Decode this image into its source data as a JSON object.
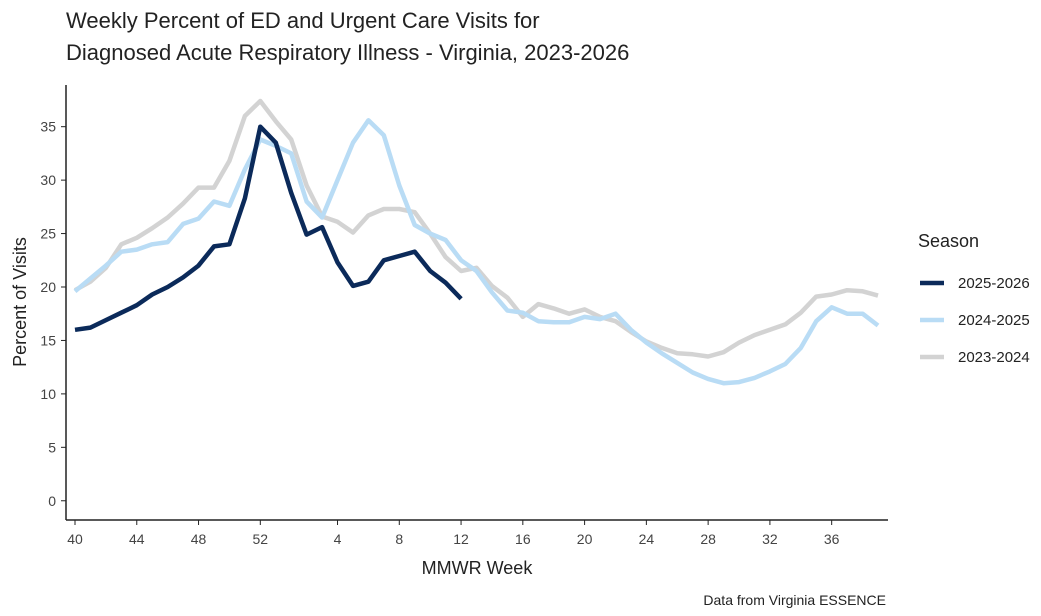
{
  "chart_data": {
    "type": "line",
    "title": [
      "Weekly Percent of ED and Urgent Care Visits for",
      "Diagnosed Acute Respiratory Illness - Virginia, 2023-2026"
    ],
    "x_label": "MMWR Week",
    "y_label": "Percent of Visits",
    "legend_title": "Season",
    "caption": "Data from Virginia ESSENCE",
    "categories": [
      "40",
      null,
      null,
      null,
      "44",
      null,
      null,
      null,
      "48",
      null,
      null,
      null,
      "52",
      null,
      null,
      null,
      null,
      "4",
      null,
      null,
      null,
      "8",
      null,
      null,
      null,
      "12",
      null,
      null,
      null,
      "16",
      null,
      null,
      null,
      "20",
      null,
      null,
      null,
      "24",
      null,
      null,
      null,
      "28",
      null,
      null,
      null,
      "32",
      null,
      null,
      null,
      "36",
      null,
      null,
      null
    ],
    "ylim": [
      -1.8,
      38.9
    ],
    "yticks": [
      0,
      5,
      10,
      15,
      20,
      25,
      30,
      35
    ],
    "series": [
      {
        "name": "2025-2026",
        "color": "#0b2a5a",
        "values": [
          16.0,
          16.2,
          16.9,
          17.6,
          18.3,
          19.3,
          20.0,
          20.9,
          22.0,
          23.8,
          24.0,
          28.3,
          35.0,
          33.5,
          28.8,
          24.9,
          25.6,
          22.3,
          20.1,
          20.5,
          22.5,
          22.9,
          23.3,
          21.5,
          20.4,
          18.9,
          null,
          null,
          null,
          null,
          null,
          null,
          null,
          null,
          null,
          null,
          null,
          null,
          null,
          null,
          null,
          null,
          null,
          null,
          null,
          null,
          null,
          null,
          null,
          null,
          null,
          null,
          null
        ]
      },
      {
        "name": "2024-2025",
        "color": "#b9dcf5",
        "values": [
          19.6,
          20.8,
          22.0,
          23.3,
          23.5,
          24.0,
          24.2,
          25.9,
          26.4,
          28.0,
          27.6,
          31.0,
          33.8,
          33.2,
          32.5,
          28.0,
          26.5,
          30.0,
          33.5,
          35.6,
          34.2,
          29.5,
          25.8,
          25.0,
          24.4,
          22.5,
          21.5,
          19.5,
          17.8,
          17.6,
          16.8,
          16.7,
          16.7,
          17.2,
          17.0,
          17.5,
          16.0,
          14.8,
          13.8,
          12.9,
          12.0,
          11.4,
          11.0,
          11.1,
          11.5,
          12.1,
          12.8,
          14.3,
          16.8,
          18.1,
          17.5,
          17.5,
          16.4
        ]
      },
      {
        "name": "2023-2024",
        "color": "#d3d3d3",
        "values": [
          19.7,
          20.5,
          21.8,
          24.0,
          24.6,
          25.5,
          26.5,
          27.8,
          29.3,
          29.3,
          31.8,
          36.0,
          37.4,
          35.5,
          33.8,
          29.5,
          26.6,
          26.1,
          25.1,
          26.7,
          27.3,
          27.3,
          27.0,
          25.0,
          22.8,
          21.5,
          21.8,
          20.1,
          19.0,
          17.2,
          18.4,
          18.0,
          17.5,
          17.9,
          17.2,
          16.8,
          15.8,
          14.9,
          14.3,
          13.8,
          13.7,
          13.5,
          13.9,
          14.8,
          15.5,
          16.0,
          16.5,
          17.6,
          19.1,
          19.3,
          19.7,
          19.6,
          19.2
        ]
      }
    ]
  }
}
